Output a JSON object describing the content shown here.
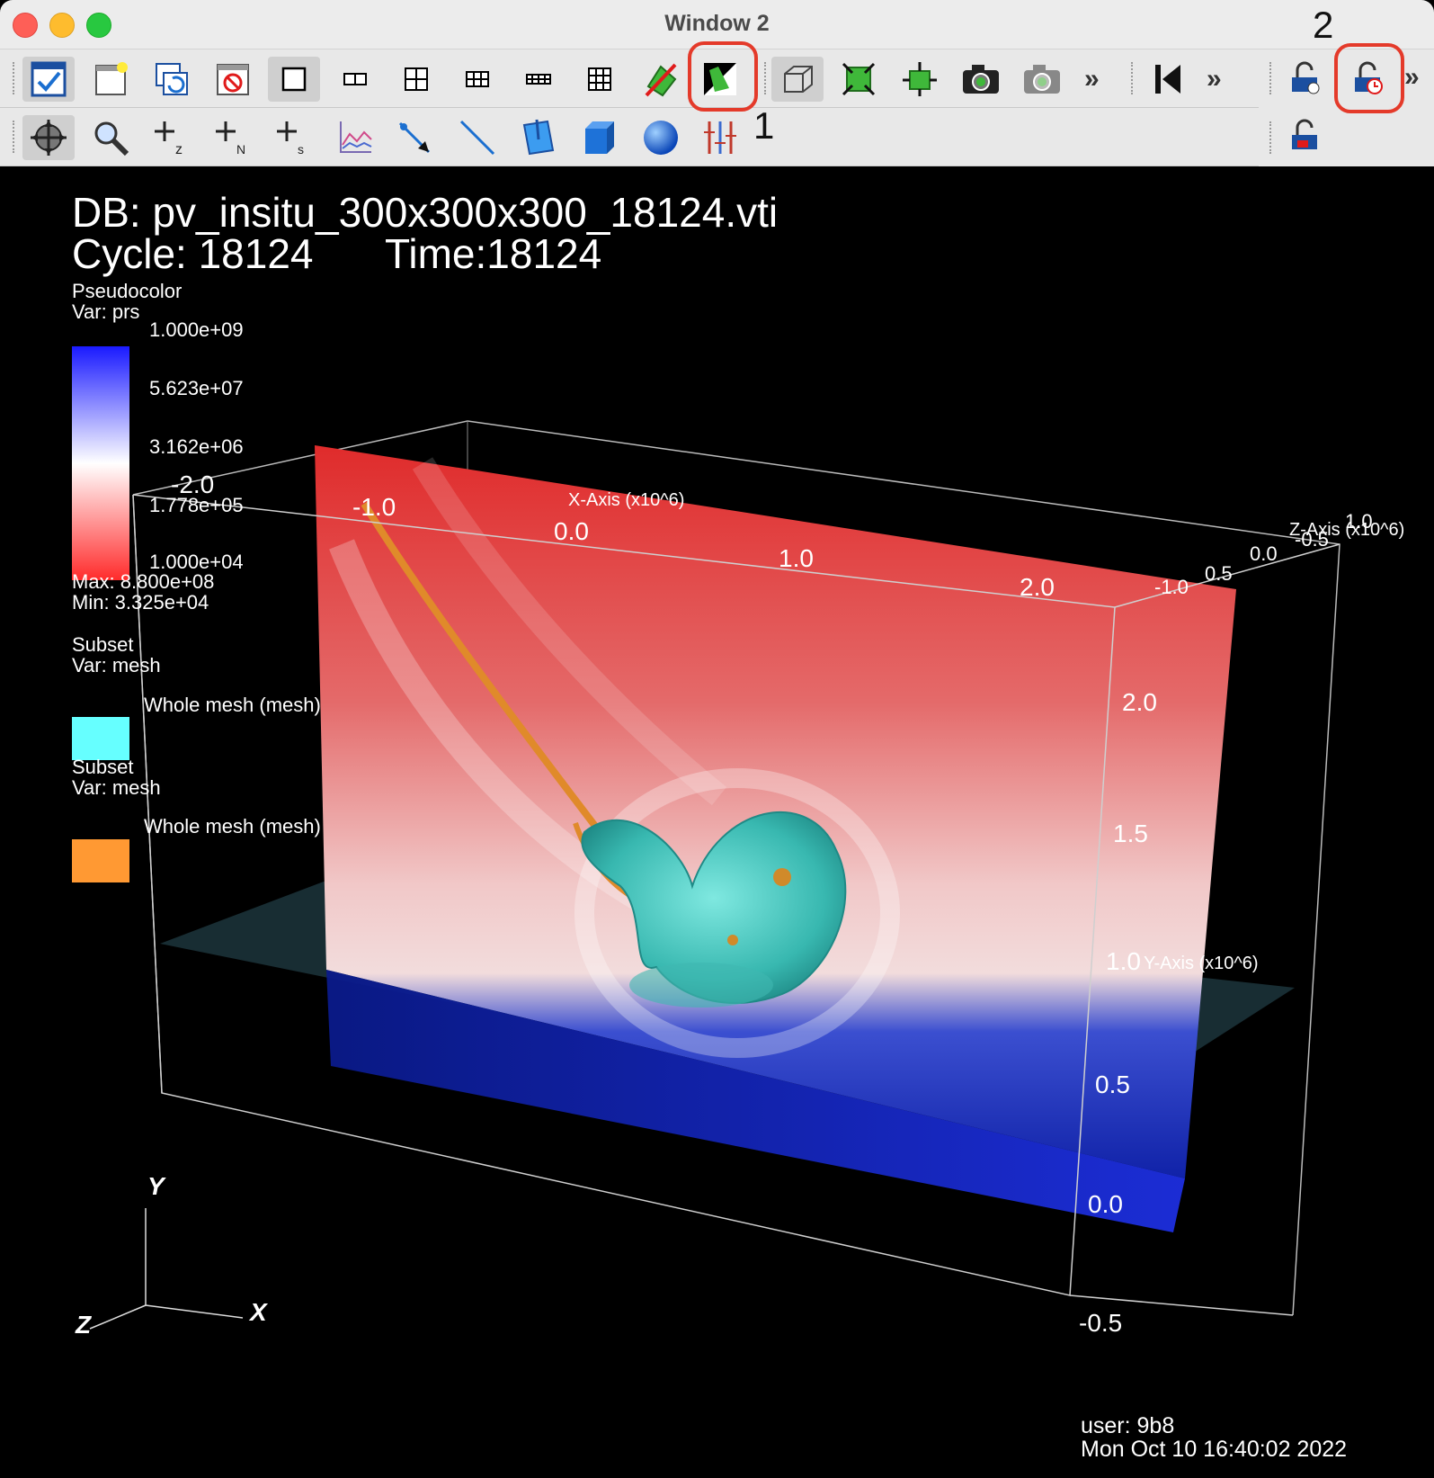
{
  "window": {
    "title": "Window 2"
  },
  "callouts": {
    "first": "1",
    "second": "2"
  },
  "toolbar_row1": {
    "buttons": [
      {
        "name": "active-window-button",
        "icon": "check-window-icon"
      },
      {
        "name": "new-window-button",
        "icon": "new-window-icon"
      },
      {
        "name": "clone-window-button",
        "icon": "clone-window-icon"
      },
      {
        "name": "delete-window-button",
        "icon": "delete-window-icon"
      },
      {
        "name": "layout-1x1-button",
        "icon": "layout-1x1-icon"
      },
      {
        "name": "layout-1x2-button",
        "icon": "layout-1x2-icon"
      },
      {
        "name": "layout-2x2-button",
        "icon": "layout-2x2-icon"
      },
      {
        "name": "layout-2x3-button",
        "icon": "layout-2x3-icon"
      },
      {
        "name": "layout-2x4-button",
        "icon": "layout-2x4-icon"
      },
      {
        "name": "layout-3x3-button",
        "icon": "layout-3x3-icon"
      },
      {
        "name": "toggle-spin-button",
        "icon": "spin-icon"
      },
      {
        "name": "invert-background-button",
        "icon": "invert-background-icon"
      },
      {
        "name": "perspective-button",
        "icon": "perspective-box-icon"
      },
      {
        "name": "reset-view-button",
        "icon": "reset-view-icon"
      },
      {
        "name": "recenter-view-button",
        "icon": "recenter-icon"
      },
      {
        "name": "save-image-button",
        "icon": "camera-icon"
      },
      {
        "name": "save-image-window-button",
        "icon": "camera-grey-icon"
      }
    ],
    "more_label": "»"
  },
  "toolbar_row2": {
    "buttons": [
      {
        "name": "navigate-mode-button",
        "icon": "navigate-icon"
      },
      {
        "name": "zoom-mode-button",
        "icon": "zoom-icon"
      },
      {
        "name": "zone-pick-button",
        "icon": "zone-pick-icon",
        "sub": "z"
      },
      {
        "name": "node-pick-button",
        "icon": "node-pick-icon",
        "sub": "N"
      },
      {
        "name": "spreadsheet-pick-button",
        "icon": "spreadsheet-pick-icon",
        "sub": "s"
      },
      {
        "name": "curve-pick-button",
        "icon": "curve-icon"
      },
      {
        "name": "pick-mode-button",
        "icon": "pick-arrow-icon"
      },
      {
        "name": "lineout-button",
        "icon": "lineout-icon"
      },
      {
        "name": "plane-tool-button",
        "icon": "plane-icon"
      },
      {
        "name": "box-tool-button",
        "icon": "box-icon"
      },
      {
        "name": "sphere-tool-button",
        "icon": "sphere-icon"
      },
      {
        "name": "axis-restriction-button",
        "icon": "axis-restriction-icon"
      }
    ]
  },
  "viewport": {
    "db_label": "DB: pv_insitu_300x300x300_18124.vti",
    "cycle_label": "Cycle: 18124",
    "time_label": "Time:18124",
    "legend1": {
      "plot_type": "Pseudocolor",
      "var": "Var: prs",
      "ticks": [
        "1.000e+09",
        "5.623e+07",
        "3.162e+06",
        "1.778e+05",
        "1.000e+04"
      ],
      "max": "Max:  8.800e+08",
      "min": "Min:  3.325e+04",
      "colors": [
        "#1a1aff",
        "#ffffff",
        "#ff2b2b"
      ]
    },
    "legend2": {
      "plot_type": "Subset",
      "var": "Var: mesh",
      "entry": "Whole mesh (mesh)",
      "color": "#66ffff"
    },
    "legend3": {
      "plot_type": "Subset",
      "var": "Var: mesh",
      "entry": "Whole mesh (mesh)",
      "color": "#ff9933"
    },
    "axes": {
      "x_title": "X-Axis (x10^6)",
      "y_title": "Y-Axis (x10^6)",
      "z_title": "Z-Axis (x10^6)",
      "x_ticks": [
        "-2.0",
        "-1.0",
        "0.0",
        "1.0",
        "2.0"
      ],
      "y_ticks": [
        "2.0",
        "1.5",
        "1.0",
        "0.5",
        "0.0",
        "-0.5"
      ],
      "z_ticks": [
        "1.0",
        "0.5",
        "0.0",
        "-0.5",
        "-1.0"
      ]
    },
    "triad": {
      "x": "X",
      "y": "Y",
      "z": "Z"
    },
    "user_label": "user: 9b8",
    "date_label": "Mon Oct 10 16:40:02 2022"
  }
}
